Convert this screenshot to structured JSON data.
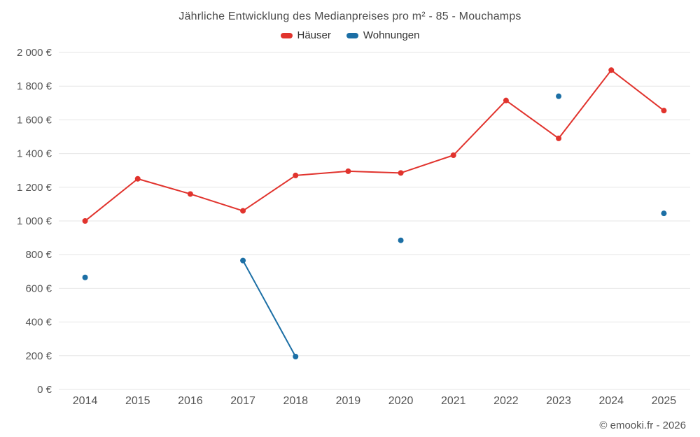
{
  "title": "Jährliche Entwicklung des Medianpreises pro m² - 85 - Mouchamps",
  "copyright": "© emooki.fr - 2026",
  "chart_data": {
    "type": "line",
    "title": "Jährliche Entwicklung des Medianpreises pro m² - 85 - Mouchamps",
    "categories": [
      "2014",
      "2015",
      "2016",
      "2017",
      "2018",
      "2019",
      "2020",
      "2021",
      "2022",
      "2023",
      "2024",
      "2025"
    ],
    "series": [
      {
        "name": "Häuser",
        "color": "#e1332d",
        "values": [
          1000,
          1250,
          1160,
          1060,
          1270,
          1295,
          1285,
          1390,
          1715,
          1490,
          1895,
          1655
        ]
      },
      {
        "name": "Wohnungen",
        "color": "#1c6fa5",
        "values": [
          665,
          null,
          null,
          765,
          195,
          null,
          885,
          null,
          null,
          1740,
          null,
          1045
        ]
      }
    ],
    "ylim": [
      0,
      2000
    ],
    "ytick_step": 200,
    "ytick_suffix": " €",
    "xlabel": "",
    "ylabel": "",
    "grid": "horizontal",
    "legend_position": "top",
    "grid_color": "#e6e6e6",
    "tick_label_color": "#555555"
  }
}
